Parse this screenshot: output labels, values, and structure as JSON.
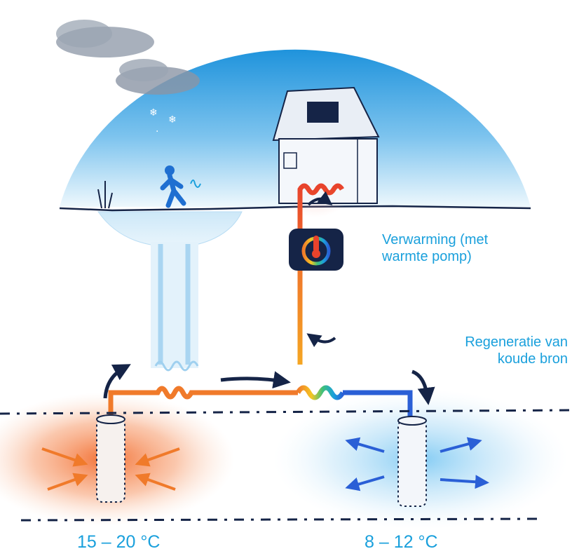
{
  "labels": {
    "heating": "Verwarming (met\nwarmte pomp)",
    "regeneration": "Regeneratie van\nkoude bron"
  },
  "temperatures": {
    "warm_source": "15 – 20 °C",
    "cold_source": "8 – 12 °C"
  },
  "icons": {
    "heat_pump": "thermometer-cycle-icon",
    "cloud": "cloud-icon",
    "snowflake": "snowflake-icon",
    "person": "walking-person-icon",
    "house": "house-icon"
  },
  "colors": {
    "sky_top": "#1f93dc",
    "sky_bottom": "#eaf6fd",
    "warm_pipe": "#f07a2a",
    "cold_pipe": "#2a5fd6",
    "hot_pipe": "#e8432c",
    "label_text": "#1aa0dc",
    "arrow": "#152447",
    "heat_pump_box": "#152447"
  }
}
